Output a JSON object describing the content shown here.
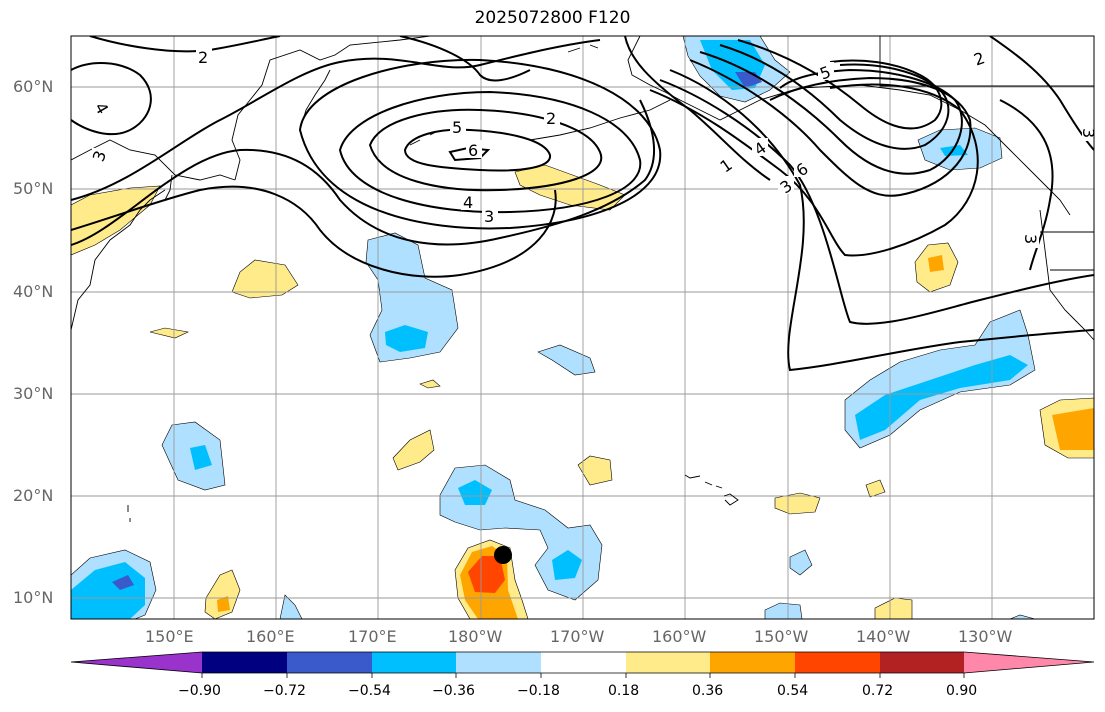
{
  "title": "2025072800 F120",
  "lat_labels": [
    "60°N",
    "50°N",
    "40°N",
    "30°N",
    "20°N",
    "10°N"
  ],
  "lon_labels": [
    "150°E",
    "160°E",
    "170°E",
    "180°W",
    "170°W",
    "160°W",
    "150°W",
    "140°W",
    "130°W"
  ],
  "contour_labels": [
    "2",
    "4",
    "3",
    "5",
    "6",
    "4",
    "3",
    "2",
    "3",
    "1",
    "4",
    "3",
    "6",
    "5",
    "2",
    "3"
  ],
  "colorbar": {
    "tick_labels": [
      "−0.90",
      "−0.72",
      "−0.54",
      "−0.36",
      "−0.18",
      "0.18",
      "0.36",
      "0.54",
      "0.72",
      "0.90"
    ],
    "colors": [
      "#9933cc",
      "#000080",
      "#3a5acc",
      "#00bfff",
      "#b0e0ff",
      "#ffffff",
      "#ffeb8a",
      "#ffa500",
      "#ff4500",
      "#b22222",
      "#ff88aa"
    ]
  },
  "fill_colors": {
    "light_blue": "#b0e0ff",
    "blue": "#00bfff",
    "dark_blue": "#3a5acc",
    "light_yellow": "#ffeb8a",
    "orange": "#ffa500",
    "red_orange": "#ff4500"
  },
  "marker": "storm-center-dot"
}
